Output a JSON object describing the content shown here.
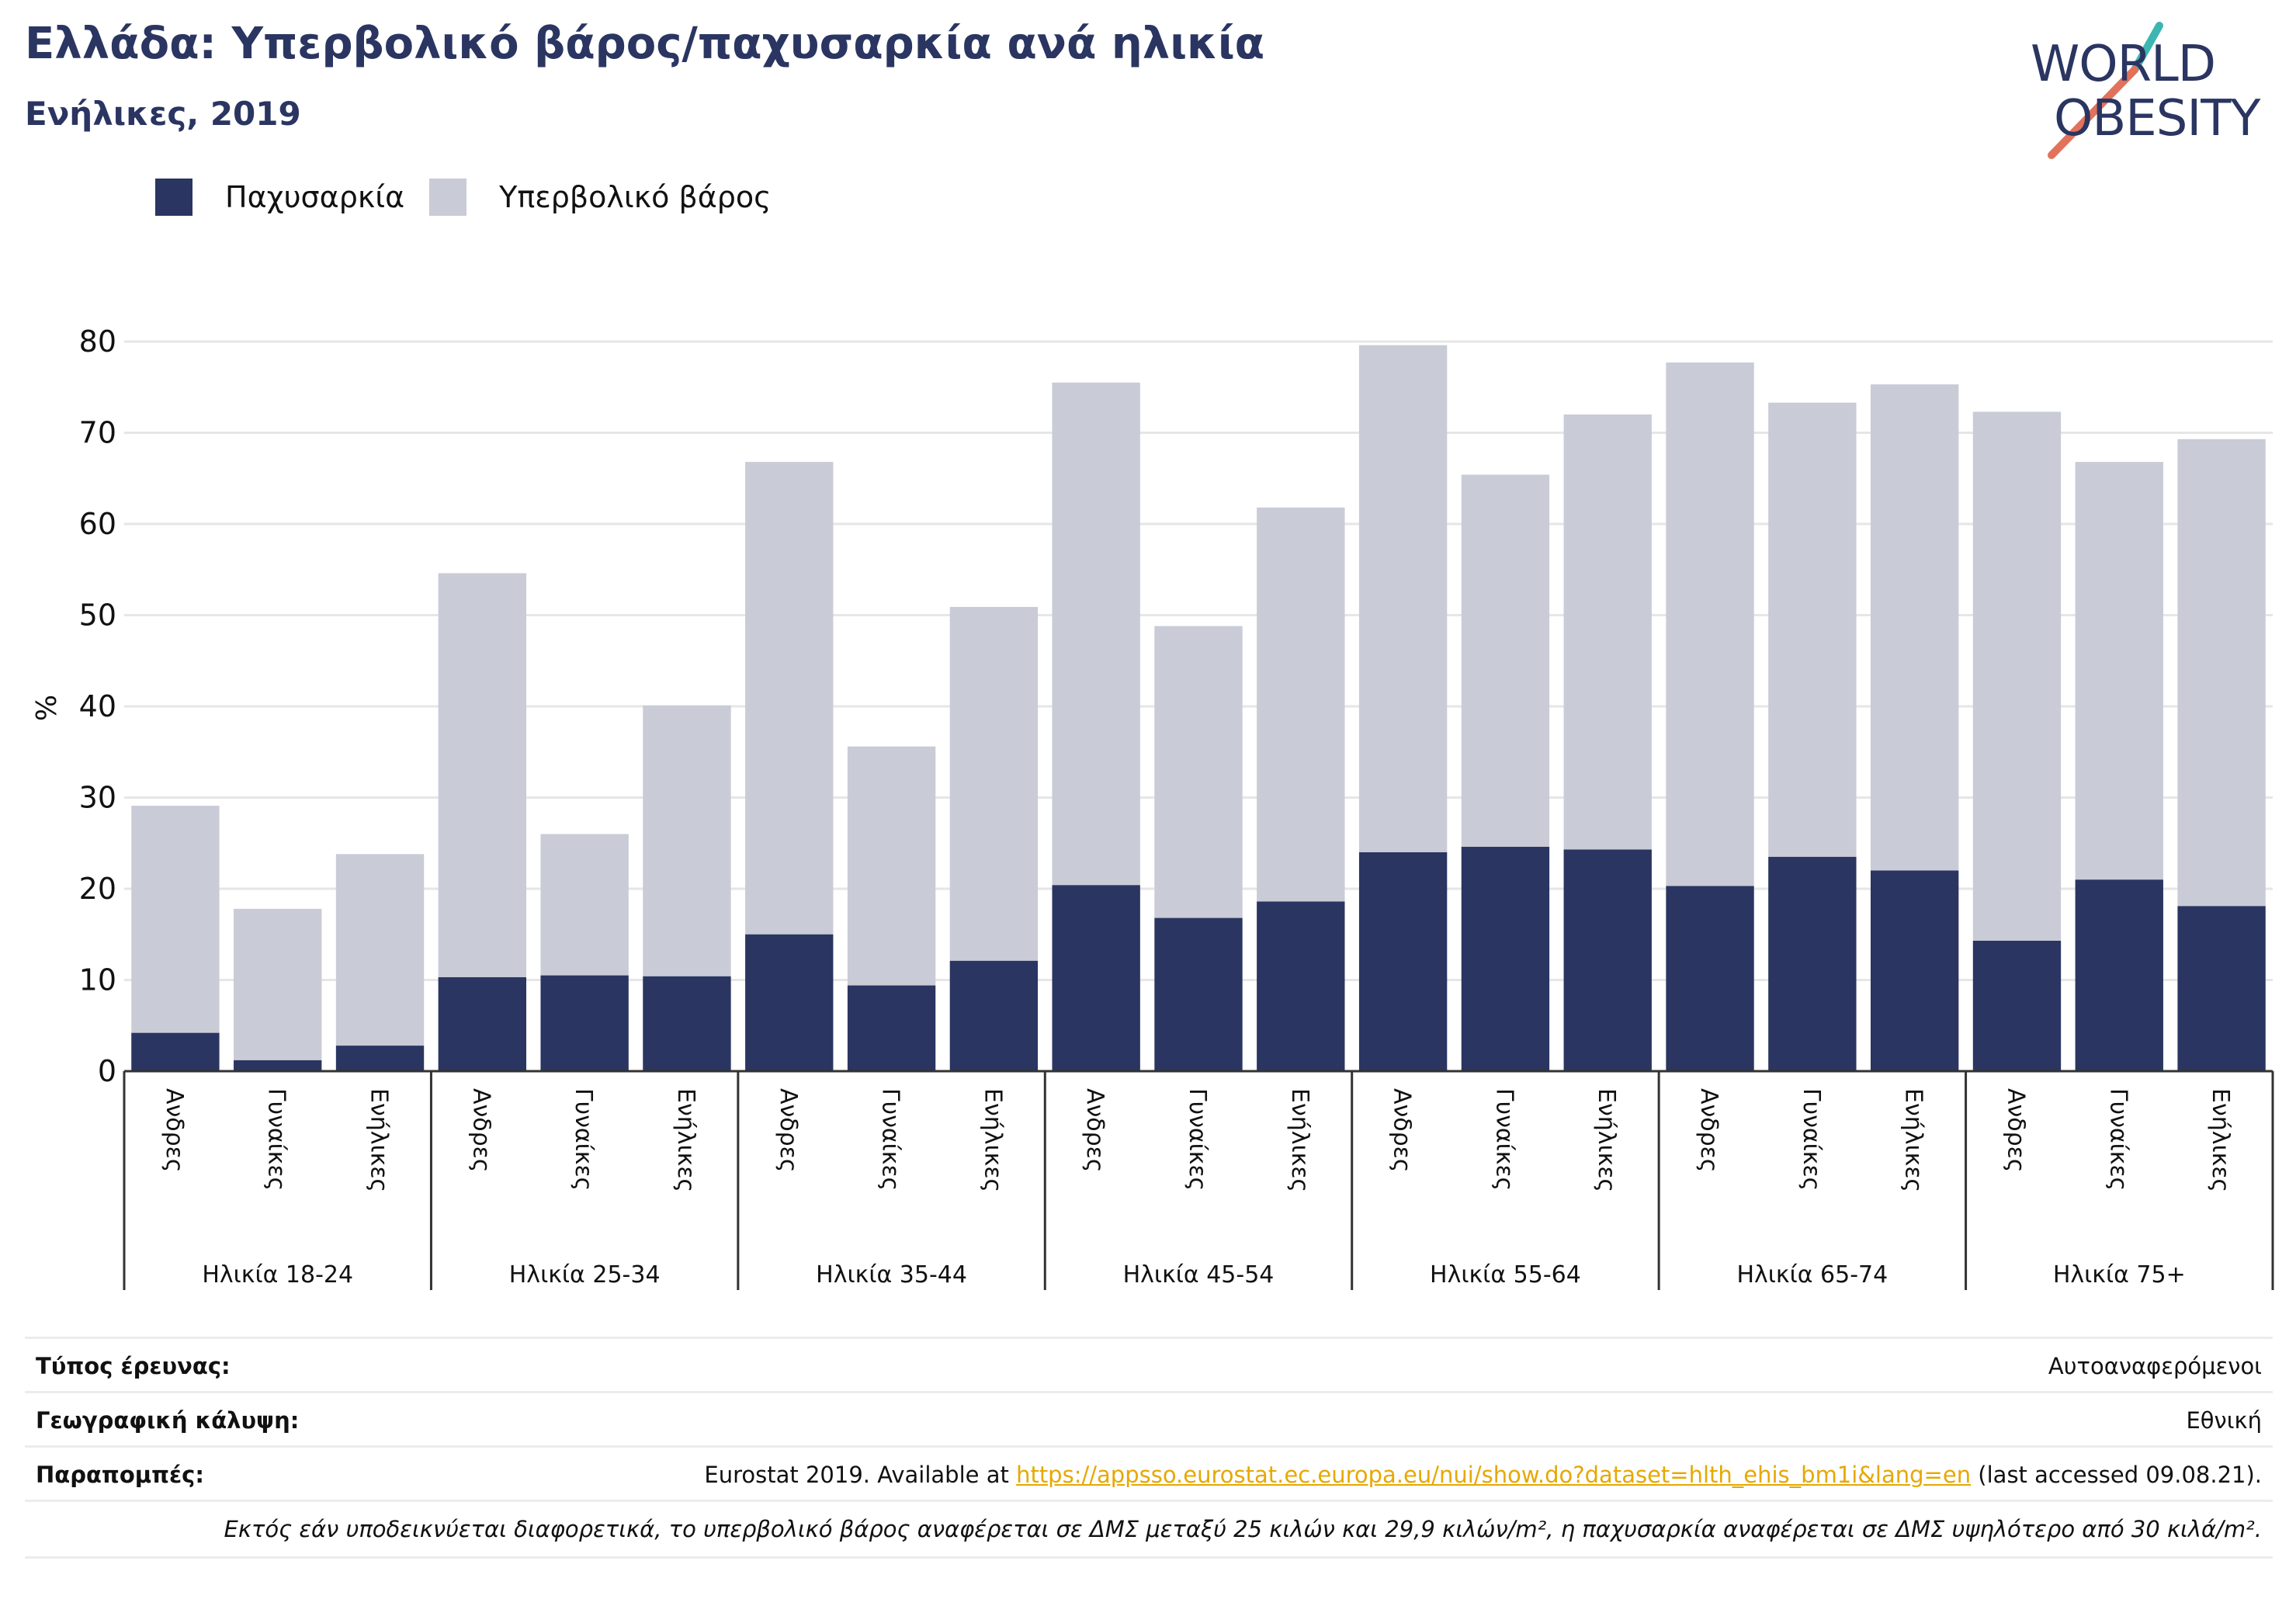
{
  "header": {
    "title": "Ελλάδα: Υπερβολικό βάρος/παχυσαρκία ανά ηλικία",
    "subtitle": "Ενήλικες, 2019"
  },
  "logo": {
    "line1": "WORLD",
    "line2": "OBESITY",
    "accent_colors": [
      "#3bb6b0",
      "#e2725b"
    ]
  },
  "legend": {
    "obesity_label": "Παχυσαρκία",
    "overweight_label": "Υπερβολικό βάρος"
  },
  "colors": {
    "obesity": "#2a3561",
    "overweight": "#c9cbd6",
    "grid": "#e6e6e6",
    "axis": "#333333"
  },
  "chart_data": {
    "type": "bar",
    "stacked": true,
    "ylabel": "%",
    "ylim": [
      0,
      80
    ],
    "yticks": [
      0,
      10,
      20,
      30,
      40,
      50,
      60,
      70,
      80
    ],
    "groups": [
      "Ηλικία 18-24",
      "Ηλικία 25-34",
      "Ηλικία 35-44",
      "Ηλικία 45-54",
      "Ηλικία 55-64",
      "Ηλικία 65-74",
      "Ηλικία 75+"
    ],
    "subcategories": [
      "Ανδρες",
      "Γυναίκες",
      "Ενήλικες"
    ],
    "series": [
      {
        "name": "Παχυσαρκία",
        "values": [
          4.2,
          1.2,
          2.8,
          10.3,
          10.5,
          10.4,
          15.0,
          9.4,
          12.1,
          20.4,
          16.8,
          18.6,
          24.0,
          24.6,
          24.3,
          20.3,
          23.5,
          22.0,
          14.3,
          21.0,
          18.1
        ]
      },
      {
        "name": "Υπερβολικό βάρος",
        "values": [
          24.9,
          16.6,
          21.0,
          44.3,
          15.5,
          29.7,
          51.8,
          26.2,
          38.8,
          55.1,
          32.0,
          43.2,
          55.6,
          40.8,
          47.7,
          57.4,
          49.8,
          53.3,
          58.0,
          45.8,
          51.2
        ]
      }
    ]
  },
  "info": {
    "survey_label": "Τύπος έρευνας:",
    "survey_value": "Αυτοαναφερόμενοι",
    "coverage_label": "Γεωγραφική κάλυψη:",
    "coverage_value": "Εθνική",
    "references_label": "Παραπομπές:",
    "references_prefix": "Eurostat 2019. Available at ",
    "references_link": "https://appsso.eurostat.ec.europa.eu/nui/show.do?dataset=hlth_ehis_bm1i&lang=en",
    "references_suffix": " (last accessed 09.08.21).",
    "note": "Εκτός εάν υποδεικνύεται διαφορετικά, το υπερβολικό βάρος αναφέρεται σε ΔΜΣ μεταξύ 25 κιλών και 29,9 κιλών/m², η παχυσαρκία αναφέρεται σε ΔΜΣ υψηλότερο από 30 κιλά/m²."
  }
}
